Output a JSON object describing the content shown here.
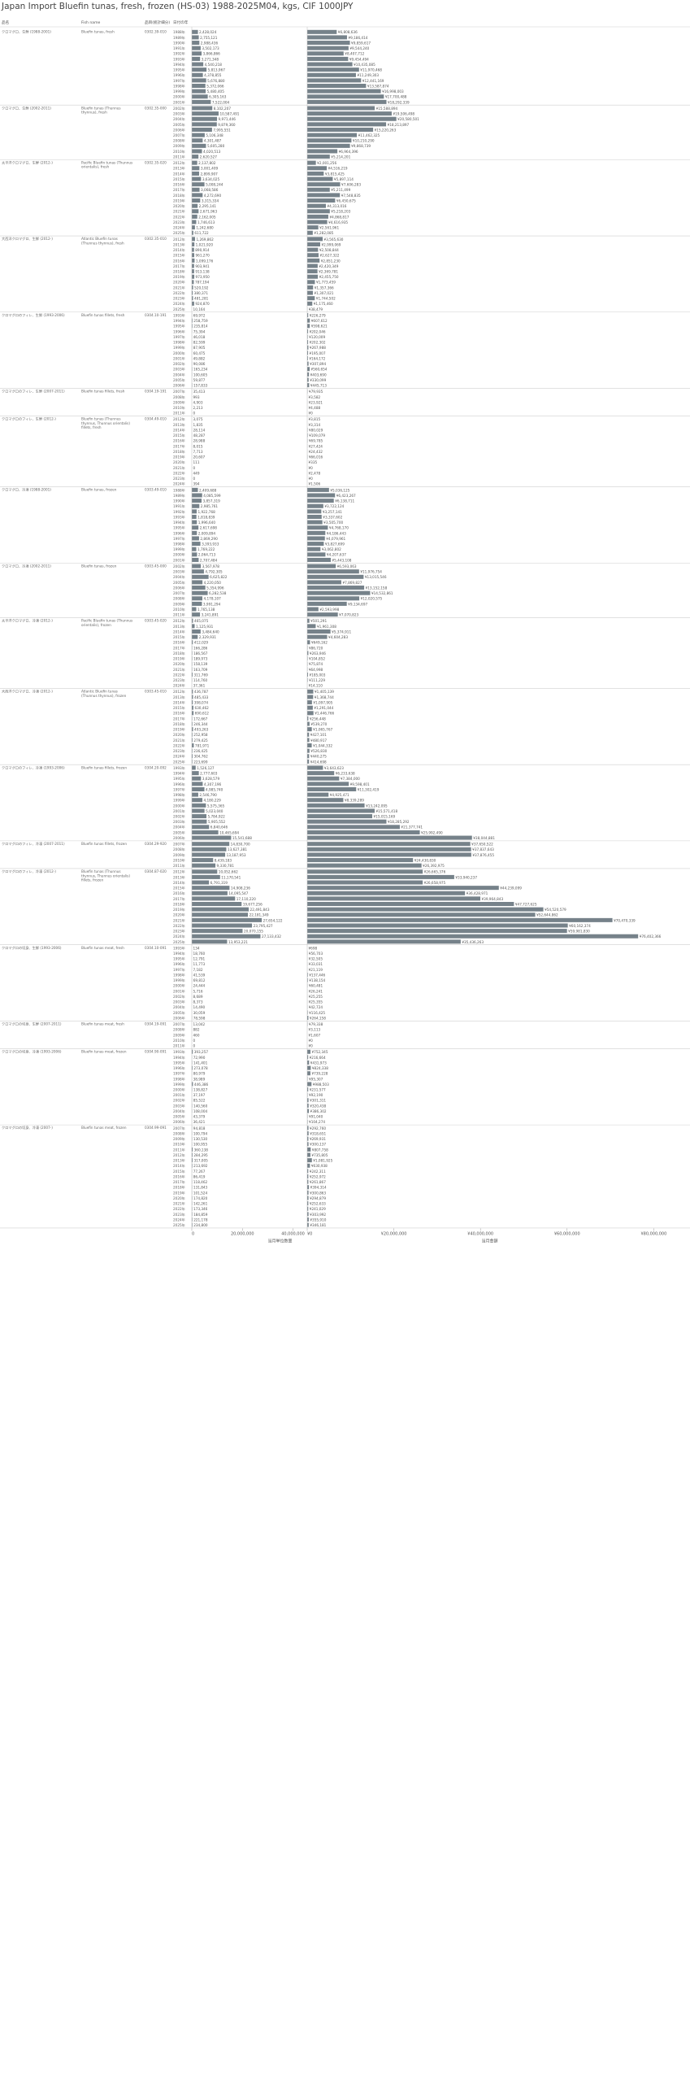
{
  "page": {
    "title": "Japan Import Bluefin tunas, fresh, frozen (HS-03) 1988-2025M04, kgs, CIF 1000JPY"
  },
  "headers": {
    "name": "品名",
    "fish_name": "Fish name",
    "hs": "品目(統計細分)",
    "year": "日付の年"
  },
  "axis": {
    "left_ticks": [
      "0",
      "20,000,000",
      "40,000,000"
    ],
    "right_ticks": [
      "¥0",
      "¥20,000,000",
      "¥40,000,000",
      "¥60,000,000",
      "¥80,000,000"
    ],
    "left_label": "当月単位数量",
    "right_label": "当月金額"
  },
  "colors": {
    "bar": "#76828a",
    "text": "#555555",
    "separator": "#cfcfcf"
  },
  "chart_data": {
    "type": "bar",
    "orientation": "horizontal",
    "measures": [
      "quantity_kgs",
      "value_1000jpy"
    ],
    "xlim_quantity": [
      0,
      44000000
    ],
    "xlim_value": [
      0,
      88000000
    ],
    "groups": [
      {
        "name": "クロマグロ、生鮮 (1988-2001)",
        "fish": "Bluefin tunas, fresh",
        "hs": "0302.39-010",
        "years": [
          "1988年",
          "1989年",
          "1990年",
          "1991年",
          "1992年",
          "1993年",
          "1994年",
          "1995年",
          "1996年",
          "1997年",
          "1998年",
          "1999年",
          "2000年",
          "2001年"
        ],
        "q": [
          2428024,
          2755121,
          2988436,
          3502173,
          3866866,
          3271348,
          4540218,
          5813967,
          4378855,
          5676880,
          5372066,
          5480405,
          6305163,
          7522004
        ],
        "v": [
          6808636,
          9186414,
          9859617,
          9544240,
          8407712,
          9454494,
          10435085,
          11970468,
          11249303,
          12441169,
          13587874,
          16998003,
          17700488,
          18292339
        ]
      },
      {
        "name": "クロマグロ、生鮮 (2002-2011)",
        "fish": "Bluefin tunas (Thunnus thynnus), fresh",
        "hs": "0302.35-000",
        "years": [
          "2002年",
          "2003年",
          "2004年",
          "2005年",
          "2006年",
          "2007年",
          "2008年",
          "2009年",
          "2010年",
          "2011年"
        ],
        "q": [
          8102207,
          10587491,
          9971446,
          9879360,
          7995551,
          5106348,
          4301487,
          5605280,
          4020513,
          2620527
        ],
        "v": [
          15588894,
          19506498,
          20580501,
          18213897,
          15220263,
          11462325,
          10210290,
          9868739,
          6964396,
          5214201
        ]
      },
      {
        "name": "太平洋クロマグロ、生鮮 (2012-)",
        "fish": "Pacific Bluefin tunas (Thunnus orientalis), fresh",
        "hs": "0302.35-020",
        "years": [
          "2012年",
          "2013年",
          "2014年",
          "2015年",
          "2016年",
          "2017年",
          "2018年",
          "2019年",
          "2020年",
          "2021年",
          "2022年",
          "2023年",
          "2024年",
          "2025年"
        ],
        "q": [
          2137802,
          3001409,
          2899907,
          3634025,
          5008244,
          3068586,
          4272690,
          3315334,
          2295141,
          2671963,
          2162005,
          1746613,
          1242680,
          611722
        ],
        "v": [
          2001256,
          4516219,
          3815425,
          5897114,
          7606283,
          5211499,
          7548835,
          6450675,
          4313016,
          5218203,
          4868817,
          4616935,
          2561961,
          1282085
        ]
      },
      {
        "name": "大西洋クロマグロ、生鮮 (2012-)",
        "fish": "Atlantic Bluefin tunas (Thunnus thynnus), fresh",
        "hs": "0302.35-010",
        "years": [
          "2012年",
          "2013年",
          "2014年",
          "2015年",
          "2016年",
          "2017年",
          "2018年",
          "2019年",
          "2020年",
          "2021年",
          "2022年",
          "2023年",
          "2024年",
          "2025年"
        ],
        "q": [
          1269862,
          1021920,
          890914,
          961270,
          1099176,
          903941,
          913138,
          973950,
          787194,
          520192,
          380371,
          481281,
          924870,
          10164
        ],
        "v": [
          3565630,
          2999069,
          2508844,
          2627322,
          2851230,
          2420349,
          2369781,
          2455750,
          1773459,
          1357366,
          1307021,
          1744502,
          1175460,
          38479
        ]
      },
      {
        "name": "クロマグロのフィレ、生鮮 (1993-2006)",
        "fish": "Bluefin tunas fillets, fresh",
        "hs": "0304.10-191",
        "years": [
          "1993年",
          "1994年",
          "1995年",
          "1996年",
          "1997年",
          "1998年",
          "1999年",
          "2000年",
          "2001年",
          "2002年",
          "2003年",
          "2004年",
          "2005年",
          "2006年"
        ],
        "q": [
          69972,
          258759,
          235814,
          75394,
          46018,
          82599,
          87905,
          60475,
          49882,
          90086,
          165234,
          100605,
          59877,
          157833
        ],
        "v": [
          226279,
          607612,
          598621,
          202046,
          120009,
          202302,
          267988,
          195007,
          164172,
          307894,
          560654,
          403690,
          330099,
          445713
        ]
      },
      {
        "name": "クロマグロのフィレ、生鮮 (2007-2011)",
        "fish": "Bluefin tunas fillets, fresh",
        "hs": "0304.19-191",
        "years": [
          "2007年",
          "2008年",
          "2009年",
          "2010年",
          "2011年"
        ],
        "q": [
          35413,
          993,
          4903,
          2213,
          0
        ],
        "v": [
          79935,
          3582,
          23921,
          4488,
          0
        ]
      },
      {
        "name": "クロマグロのフィレ、生鮮 (2012-)",
        "fish": "Bluefin tunas (Thunnus thynnus, Thunnus orientalis) fillets, fresh",
        "hs": "0304.49-010",
        "years": [
          "2012年",
          "2013年",
          "2014年",
          "2015年",
          "2016年",
          "2017年",
          "2018年",
          "2019年",
          "2020年",
          "2021年",
          "2022年",
          "2023年",
          "2024年"
        ],
        "q": [
          3075,
          1835,
          28114,
          48287,
          28988,
          8015,
          7713,
          20607,
          111,
          0,
          449,
          0,
          394
        ],
        "v": [
          3815,
          3314,
          80029,
          109079,
          69785,
          27424,
          24432,
          66016,
          335,
          0,
          2478,
          0,
          1506
        ]
      },
      {
        "name": "クロマグロ、冷凍 (1988-2001)",
        "fish": "Bluefin tunas, frozen",
        "hs": "0303.49-010",
        "years": [
          "1988年",
          "1989年",
          "1990年",
          "1991年",
          "1992年",
          "1993年",
          "1994年",
          "1995年",
          "1996年",
          "1997年",
          "1998年",
          "1999年",
          "2000年",
          "2001年"
        ],
        "q": [
          2409688,
          4085599,
          3857319,
          2985761,
          1922768,
          1818839,
          1996640,
          2617698,
          2009894,
          2869290,
          3393933,
          1769222,
          2064713,
          2707484
        ],
        "v": [
          5036125,
          6423267,
          6138711,
          3722124,
          3257141,
          3337602,
          3505700,
          4768170,
          4186443,
          4079961,
          3827699,
          3062802,
          4207637,
          5443108
        ]
      },
      {
        "name": "クロマグロ、冷凍 (2002-2011)",
        "fish": "Bluefin tunas, frozen",
        "hs": "0303.45-000",
        "years": [
          "2002年",
          "2003年",
          "2004年",
          "2005年",
          "2006年",
          "2007年",
          "2008年",
          "2009年",
          "2010年",
          "2011年"
        ],
        "q": [
          3567978,
          4792305,
          6625822,
          4220050,
          5354996,
          6282538,
          4178107,
          3991294,
          1765138,
          3241891
        ],
        "v": [
          6593063,
          11976754,
          13015546,
          7869827,
          13152158,
          14532861,
          12020575,
          9134697,
          2593998,
          7070823
        ]
      },
      {
        "name": "太平洋クロマグロ、冷凍 (2012-)",
        "fish": "Pacific Bluefin tunas (Thunnus orientalis), frozen",
        "hs": "0303.45-020",
        "years": [
          "2012年",
          "2013年",
          "2014年",
          "2015年",
          "2016年",
          "2017年",
          "2018年",
          "2019年",
          "2020年",
          "2021年",
          "2022年",
          "2023年",
          "2024年"
        ],
        "q": [
          465075,
          1125931,
          3484640,
          2329931,
          412029,
          166286,
          186567,
          189973,
          158139,
          163709,
          311769,
          114760,
          37361
        ],
        "v": [
          501291,
          1961308,
          5374911,
          4604283,
          649162,
          86720,
          263946,
          104852,
          75874,
          64998,
          185003,
          111229,
          14110
        ]
      },
      {
        "name": "大西洋クロマグロ、冷凍 (2012-)",
        "fish": "Atlantic Bluefin tunas (Thunnus thynnus), frozen",
        "hs": "0303.45-010",
        "years": [
          "2012年",
          "2013年",
          "2014年",
          "2015年",
          "2016年",
          "2017年",
          "2018年",
          "2019年",
          "2020年",
          "2021年",
          "2022年",
          "2023年",
          "2024年",
          "2025年"
        ],
        "q": [
          436787,
          485433,
          398074,
          630462,
          690612,
          172667,
          246344,
          493263,
          252958,
          279425,
          781971,
          236425,
          304762,
          223699
        ],
        "v": [
          1405139,
          1368744,
          1097905,
          1291044,
          1446766,
          256448,
          539270,
          1065767,
          427101,
          480917,
          1044332,
          526830,
          440275,
          414698
        ]
      },
      {
        "name": "クロマグロのフィレ、冷凍 (1993-2006)",
        "fish": "Bluefin tunas fillets, frozen",
        "hs": "0304.20-092",
        "years": [
          "1993年",
          "1994年",
          "1995年",
          "1996年",
          "1997年",
          "1998年",
          "1999年",
          "2000年",
          "2001年",
          "2002年",
          "2003年",
          "2004年",
          "2005年",
          "2006年"
        ],
        "q": [
          1526127,
          2777603,
          3628579,
          4307196,
          4985740,
          2546790,
          4180229,
          5575365,
          5023040,
          5784922,
          5905552,
          6840646,
          10465694,
          15541688
        ],
        "v": [
          3643623,
          6233638,
          7384000,
          9598401,
          11302419,
          4925471,
          8339289,
          13242095,
          15571418,
          15015169,
          18285292,
          21377741,
          25992490,
          38044881
        ]
      },
      {
        "name": "クロマグロのフィレ、冷凍 (2007-2011)",
        "fish": "Bluefin tunas fillets, frozen",
        "hs": "0304.29-920",
        "years": [
          "2007年",
          "2008年",
          "2009年",
          "2010年",
          "2011年"
        ],
        "q": [
          14830700,
          13627381,
          13187953,
          8439183,
          9330781
        ],
        "v": [
          37650522,
          37837643,
          37876455,
          24430830,
          26392975
        ]
      },
      {
        "name": "クロマグロのフィレ、冷凍 (2012-)",
        "fish": "Bluefin tunas (Thunnus thynnus, Thunnus orientalis) fillets, frozen",
        "hs": "0304.87-020",
        "years": [
          "2012年",
          "2013年",
          "2014年",
          "2015年",
          "2016年",
          "2017年",
          "2018年",
          "2019年",
          "2020年",
          "2021年",
          "2022年",
          "2023年",
          "2024年",
          "2025年"
        ],
        "q": [
          10052662,
          11170541,
          6791319,
          14908236,
          14095547,
          17110220,
          19677256,
          22491843,
          22181349,
          27654122,
          23795427,
          20070155,
          27133432,
          13953221
        ],
        "v": [
          26665376,
          33940237,
          26658975,
          44239099,
          36428971,
          39964843,
          47727625,
          54520579,
          52644862,
          70470339,
          60162374,
          59981830,
          76402366,
          35436263
        ]
      },
      {
        "name": "クロマグロの切身、生鮮 (1993-2006)",
        "fish": "Bluefin tunas meat, fresh",
        "hs": "0304.10-091",
        "years": [
          "1993年",
          "1994年",
          "1995年",
          "1996年",
          "1997年",
          "1998年",
          "1999年",
          "2000年",
          "2001年",
          "2002年",
          "2003年",
          "2004年",
          "2005年",
          "2006年"
        ],
        "q": [
          134,
          18760,
          12791,
          11773,
          7182,
          41539,
          69812,
          24444,
          5716,
          8689,
          8373,
          14490,
          30059,
          78598
        ],
        "v": [
          698,
          56703,
          32505,
          33031,
          21119,
          137446,
          138154,
          60481,
          26241,
          25255,
          25355,
          42724,
          116425,
          264158
        ]
      },
      {
        "name": "クロマグロの切身、生鮮 (2007-2011)",
        "fish": "Bluefin tunas meat, fresh",
        "hs": "0304.19-091",
        "years": [
          "2007年",
          "2008年",
          "2009年",
          "2010年",
          "2011年"
        ],
        "q": [
          13042,
          882,
          460,
          0,
          0
        ],
        "v": [
          79338,
          3113,
          1607,
          0,
          0
        ]
      },
      {
        "name": "クロマグロの切身、冷凍 (1993-2006)",
        "fish": "Bluefin tunas meat, frozen",
        "hs": "0304.90-091",
        "years": [
          "1993年",
          "1994年",
          "1995年",
          "1996年",
          "1997年",
          "1998年",
          "1999年",
          "2000年",
          "2001年",
          "2002年",
          "2003年",
          "2004年",
          "2005年",
          "2006年"
        ],
        "q": [
          393257,
          72990,
          141401,
          273078,
          80979,
          38989,
          446386,
          138827,
          37197,
          85522,
          140560,
          108004,
          43379,
          36421
        ],
        "v": [
          752345,
          216664,
          431973,
          824338,
          739228,
          95307,
          988503,
          231577,
          92190,
          301311,
          320438,
          386302,
          91040,
          104274
        ]
      },
      {
        "name": "クロマグロの切身、冷凍 (2007-)",
        "fish": "Bluefin tunas meat, frozen",
        "hs": "0304.99-091",
        "years": [
          "2007年",
          "2008年",
          "2009年",
          "2010年",
          "2011年",
          "2012年",
          "2013年",
          "2014年",
          "2015年",
          "2016年",
          "2017年",
          "2018年",
          "2019年",
          "2020年",
          "2021年",
          "2022年",
          "2023年",
          "2024年",
          "2025年"
        ],
        "q": [
          94818,
          100794,
          130530,
          100955,
          360138,
          284295,
          317005,
          213692,
          77267,
          86419,
          118462,
          131843,
          101524,
          174820,
          142261,
          173346,
          184859,
          221178,
          234800
        ],
        "v": [
          292760,
          318651,
          269931,
          300137,
          807758,
          735805,
          1081925,
          630938,
          242311,
          252972,
          261867,
          394314,
          300863,
          294879,
          252633,
          241029,
          303992,
          355910,
          346181
        ]
      }
    ]
  }
}
